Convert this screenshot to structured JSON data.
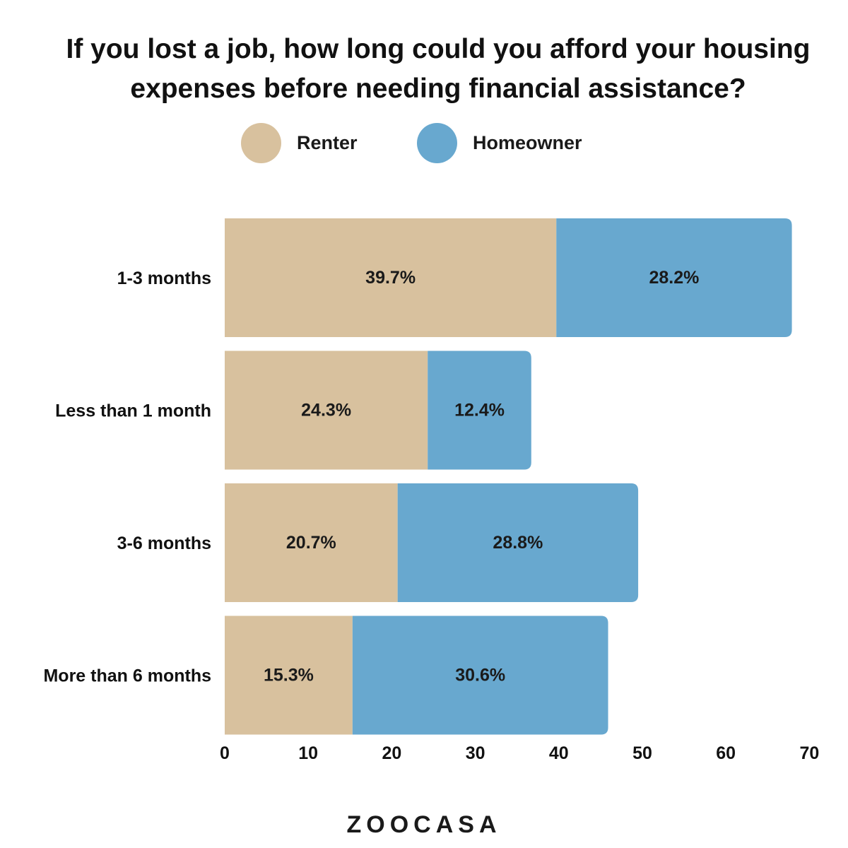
{
  "chart_data": {
    "type": "bar",
    "orientation": "horizontal",
    "stacked": true,
    "title": "If you lost a job, how long could you afford your housing expenses before needing financial assistance?",
    "title_lines": [
      "If you lost a job, how long could you afford your housing",
      "expenses before needing financial assistance?"
    ],
    "categories": [
      "1-3 months",
      "Less than 1 month",
      "3-6 months",
      "More than 6 months"
    ],
    "series": [
      {
        "name": "Renter",
        "color": "#d8c19e",
        "values": [
          39.7,
          24.3,
          20.7,
          15.3
        ],
        "labels": [
          "39.7%",
          "24.3%",
          "20.7%",
          "15.3%"
        ]
      },
      {
        "name": "Homeowner",
        "color": "#68a8cf",
        "values": [
          28.2,
          12.4,
          28.8,
          30.6
        ],
        "labels": [
          "28.2%",
          "12.4%",
          "28.8%",
          "30.6%"
        ]
      }
    ],
    "xlim": [
      0,
      70
    ],
    "xticks": [
      0,
      10,
      20,
      30,
      40,
      50,
      60,
      70
    ],
    "xtick_labels": [
      "0",
      "10",
      "20",
      "30",
      "40",
      "50",
      "60",
      "70"
    ],
    "xlabel": "",
    "ylabel": "",
    "grid": false,
    "legend_position": "top-center"
  },
  "legend": {
    "renter_label": "Renter",
    "homeowner_label": "Homeowner"
  },
  "branding": {
    "logo_text": "ZOOCASA"
  }
}
